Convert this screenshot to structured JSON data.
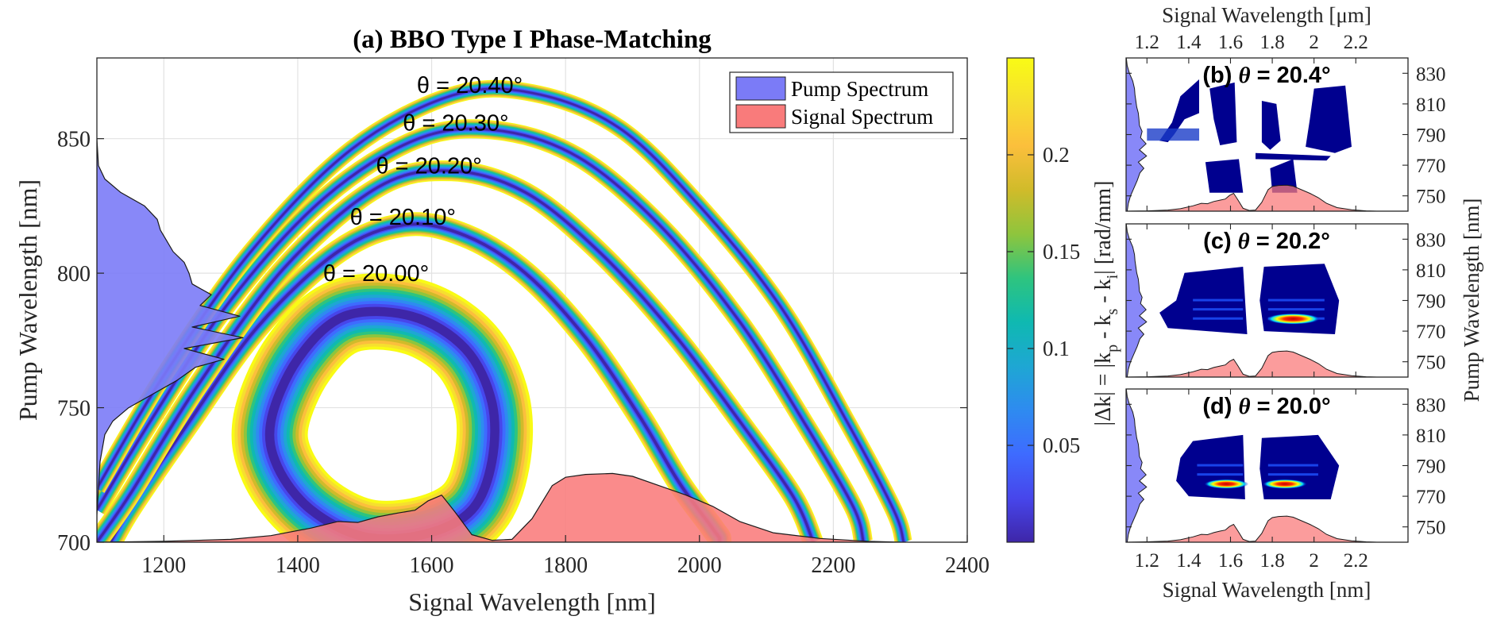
{
  "colors": {
    "pump_fill": "#7b7bf7",
    "signal_fill": "#f97b7b",
    "colormap": [
      "#3e26a8",
      "#4746eb",
      "#3e6bff",
      "#2e8bf0",
      "#1ea7d3",
      "#0fb9b1",
      "#2ec47f",
      "#8ec53d",
      "#d0bb2a",
      "#fbbf3c",
      "#f6df2f",
      "#f9fb15"
    ],
    "jet": [
      "#00008f",
      "#0000ff",
      "#00ffff",
      "#ffff00",
      "#ff0000",
      "#800000"
    ]
  },
  "chart_data": [
    {
      "id": "a",
      "type": "heatmap",
      "title": "(a) BBO Type I Phase-Matching",
      "xlabel": "Signal Wavelength [nm]",
      "ylabel": "Pump Wavelength [nm]",
      "xlim": [
        1100,
        2400
      ],
      "ylim": [
        700,
        880
      ],
      "xticks": [
        "1200",
        "1400",
        "1600",
        "1800",
        "2000",
        "2200",
        "2400"
      ],
      "yticks": [
        "700",
        "750",
        "800",
        "850"
      ],
      "grid": true,
      "contours": [
        {
          "label": "θ = 20.00°",
          "theta": 20.0,
          "center_signal_nm": 1530,
          "center_pump_nm": 757,
          "min_pump_nm": 700,
          "max_pump_nm": 798
        },
        {
          "label": "θ = 20.10°",
          "theta": 20.1,
          "max_pump_nm": 818
        },
        {
          "label": "θ = 20.20°",
          "theta": 20.2,
          "max_pump_nm": 838
        },
        {
          "label": "θ = 20.30°",
          "theta": 20.3,
          "max_pump_nm": 853
        },
        {
          "label": "θ = 20.40°",
          "theta": 20.4,
          "max_pump_nm": 866
        }
      ],
      "legend": {
        "location": "top-right",
        "entries": [
          "Pump Spectrum",
          "Signal Spectrum"
        ]
      },
      "signal_spectrum": {
        "x_nm": [
          1100,
          1200,
          1300,
          1360,
          1420,
          1460,
          1490,
          1520,
          1550,
          1575,
          1595,
          1615,
          1635,
          1660,
          1690,
          1720,
          1750,
          1780,
          1800,
          1830,
          1870,
          1900,
          1940,
          1980,
          2020,
          2060,
          2110,
          2180,
          2250,
          2300
        ],
        "amplitude": [
          0,
          0.01,
          0.03,
          0.07,
          0.15,
          0.22,
          0.21,
          0.27,
          0.31,
          0.34,
          0.44,
          0.5,
          0.32,
          0.08,
          0.02,
          0.03,
          0.25,
          0.6,
          0.69,
          0.72,
          0.73,
          0.7,
          0.6,
          0.5,
          0.38,
          0.22,
          0.1,
          0.04,
          0.01,
          0
        ]
      },
      "pump_spectrum": {
        "y_nm": [
          700,
          710,
          720,
          730,
          740,
          745,
          750,
          755,
          760,
          765,
          768,
          772,
          776,
          780,
          784,
          788,
          792,
          796,
          800,
          804,
          808,
          812,
          816,
          820,
          825,
          830,
          835,
          840,
          850
        ],
        "amplitude": [
          0,
          0,
          0.01,
          0.02,
          0.05,
          0.1,
          0.2,
          0.35,
          0.5,
          0.62,
          0.8,
          0.55,
          0.92,
          0.6,
          0.9,
          0.65,
          0.72,
          0.6,
          0.58,
          0.55,
          0.48,
          0.44,
          0.4,
          0.38,
          0.3,
          0.15,
          0.05,
          0.01,
          0
        ]
      }
    },
    {
      "id": "colorbar",
      "type": "colorbar",
      "label": "|Δk| = |kp - ks - ki| [rad/mm]",
      "label_main": "|Δk| = |k",
      "label_sub_p": "p",
      "label_mid1": " - k",
      "label_sub_s": "s",
      "label_mid2": " - k",
      "label_sub_i": "i",
      "label_end": "| [rad/mm]",
      "range": [
        0,
        0.25
      ],
      "ticks": [
        "0.05",
        "0.1",
        "0.15",
        "0.2"
      ]
    },
    {
      "id": "b",
      "type": "heatmap",
      "title_prefix": "(b) ",
      "title_theta": "θ",
      "title_value": " = 20.4°",
      "xlim": [
        1.1,
        2.45
      ],
      "ylim": [
        740,
        840
      ],
      "yticks": [
        "750",
        "770",
        "790",
        "810",
        "830"
      ],
      "top_xlabel": "Signal Wavelength [μm]",
      "top_xticks": [
        "1.2",
        "1.4",
        "1.6",
        "1.8",
        "2",
        "2.2"
      ]
    },
    {
      "id": "c",
      "type": "heatmap",
      "title_prefix": "(c) ",
      "title_theta": "θ",
      "title_value": " = 20.2°",
      "xlim": [
        1.1,
        2.45
      ],
      "ylim": [
        740,
        840
      ],
      "yticks": [
        "750",
        "770",
        "790",
        "810",
        "830"
      ],
      "right_ylabel": "Pump Wavelength [nm]"
    },
    {
      "id": "d",
      "type": "heatmap",
      "title_prefix": "(d) ",
      "title_theta": "θ",
      "title_value": " = 20.0°",
      "xlim": [
        1.1,
        2.45
      ],
      "ylim": [
        740,
        840
      ],
      "yticks": [
        "750",
        "770",
        "790",
        "810",
        "830"
      ],
      "xlabel": "Signal Wavelength [nm]",
      "xticks": [
        "1.2",
        "1.4",
        "1.6",
        "1.8",
        "2",
        "2.2"
      ]
    }
  ]
}
